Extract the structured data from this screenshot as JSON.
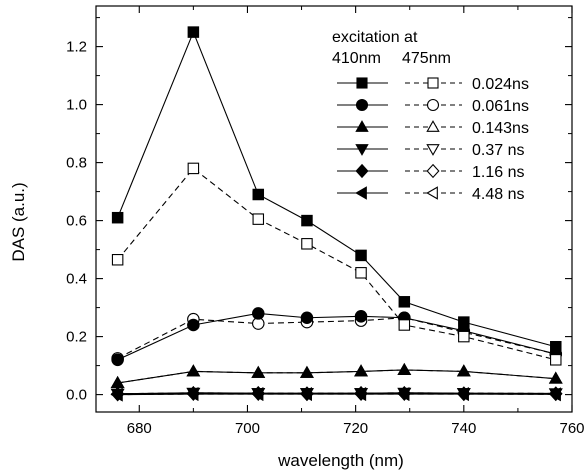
{
  "chart_data": {
    "type": "line",
    "xlabel": "wavelength (nm)",
    "ylabel": "DAS (a.u.)",
    "xlim": [
      672,
      760
    ],
    "ylim": [
      -0.06,
      1.34
    ],
    "xticks": [
      680,
      700,
      720,
      740,
      760
    ],
    "xtick_labels": [
      "680",
      "700",
      "720",
      "740",
      "760"
    ],
    "yticks": [
      0.0,
      0.2,
      0.4,
      0.6,
      0.8,
      1.0,
      1.2
    ],
    "ytick_labels": [
      "0.0",
      "0.2",
      "0.4",
      "0.6",
      "0.8",
      "1.0",
      "1.2"
    ],
    "grid": false,
    "legend": {
      "placement": "top-right",
      "title": "excitation at",
      "col1_header": "410nm",
      "col2_header": "475nm"
    },
    "x": [
      676,
      690,
      702,
      711,
      721,
      729,
      740,
      757
    ],
    "series": [
      {
        "name": "0.024ns",
        "excitation": "410nm",
        "marker": "square",
        "filled": true,
        "dash": "solid",
        "values": [
          0.61,
          1.25,
          0.69,
          0.6,
          0.48,
          0.32,
          0.25,
          0.165
        ]
      },
      {
        "name": "0.024ns",
        "excitation": "475nm",
        "marker": "square",
        "filled": false,
        "dash": "dashed",
        "values": [
          0.465,
          0.78,
          0.605,
          0.52,
          0.42,
          0.24,
          0.2,
          0.12
        ]
      },
      {
        "name": "0.061ns",
        "excitation": "410nm",
        "marker": "circle",
        "filled": true,
        "dash": "solid",
        "values": [
          0.12,
          0.24,
          0.28,
          0.265,
          0.27,
          0.265,
          0.22,
          0.14
        ]
      },
      {
        "name": "0.061ns",
        "excitation": "475nm",
        "marker": "circle",
        "filled": false,
        "dash": "dashed",
        "values": [
          0.125,
          0.26,
          0.245,
          0.25,
          0.255,
          0.265,
          0.215,
          0.14
        ]
      },
      {
        "name": "0.143ns",
        "excitation": "410nm",
        "marker": "triangle-up",
        "filled": true,
        "dash": "solid",
        "values": [
          0.04,
          0.08,
          0.075,
          0.075,
          0.08,
          0.085,
          0.08,
          0.055
        ]
      },
      {
        "name": "0.143ns",
        "excitation": "475nm",
        "marker": "triangle-up",
        "filled": false,
        "dash": "dashed",
        "values": [
          0.04,
          0.08,
          0.075,
          0.075,
          0.08,
          0.085,
          0.08,
          0.055
        ]
      },
      {
        "name": "0.37 ns",
        "excitation": "410nm",
        "marker": "triangle-down",
        "filled": true,
        "dash": "solid",
        "values": [
          0.003,
          0.006,
          0.005,
          0.005,
          0.005,
          0.006,
          0.005,
          0.004
        ]
      },
      {
        "name": "0.37 ns",
        "excitation": "475nm",
        "marker": "triangle-down",
        "filled": false,
        "dash": "dashed",
        "values": [
          0.003,
          0.006,
          0.005,
          0.005,
          0.005,
          0.006,
          0.005,
          0.004
        ]
      },
      {
        "name": "1.16 ns",
        "excitation": "410nm",
        "marker": "diamond",
        "filled": true,
        "dash": "solid",
        "values": [
          0.002,
          0.004,
          0.004,
          0.003,
          0.004,
          0.004,
          0.003,
          0.003
        ]
      },
      {
        "name": "1.16 ns",
        "excitation": "475nm",
        "marker": "diamond",
        "filled": false,
        "dash": "dashed",
        "values": [
          0.002,
          0.004,
          0.004,
          0.003,
          0.004,
          0.004,
          0.003,
          0.003
        ]
      },
      {
        "name": "4.48 ns",
        "excitation": "410nm",
        "marker": "triangle-left",
        "filled": true,
        "dash": "solid",
        "values": [
          0.0,
          0.002,
          0.002,
          0.002,
          0.002,
          0.002,
          0.002,
          0.001
        ]
      },
      {
        "name": "4.48 ns",
        "excitation": "475nm",
        "marker": "triangle-left",
        "filled": false,
        "dash": "dashed",
        "values": [
          0.0,
          0.002,
          0.002,
          0.002,
          0.002,
          0.002,
          0.002,
          0.001
        ]
      }
    ],
    "legend_rows": [
      "0.024ns",
      "0.061ns",
      "0.143ns",
      "0.37 ns",
      "1.16 ns",
      "4.48 ns"
    ]
  },
  "colors": {
    "line": "#000000",
    "background": "#ffffff"
  }
}
